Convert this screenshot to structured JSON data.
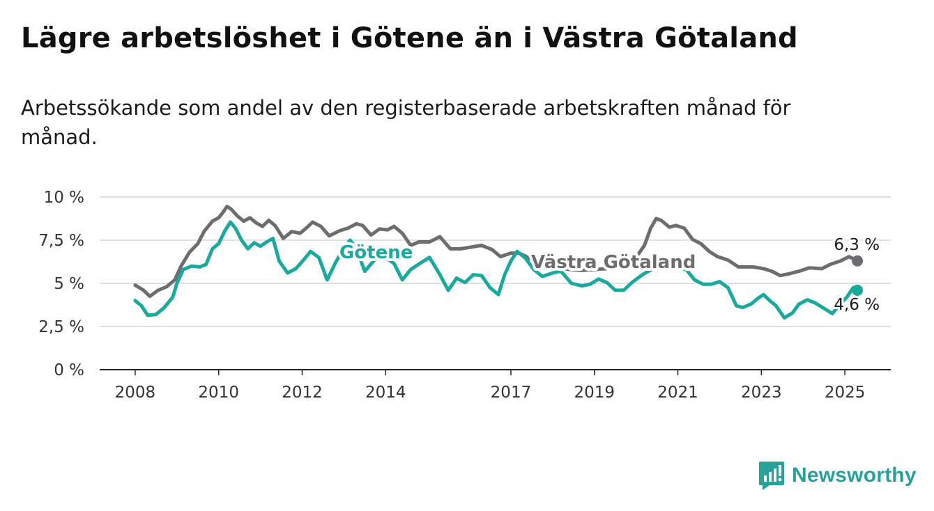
{
  "title": "Lägre arbetslöshet i Götene än i Västra Götaland",
  "subtitle": "Arbetssökande som andel av den registerbaserade arbetskraften månad för månad.",
  "brand": "Newsworthy",
  "chart_data": {
    "type": "line",
    "y_ticks": [
      0,
      2.5,
      5,
      7.5,
      10
    ],
    "y_tick_labels": [
      "0 %",
      "2,5 %",
      "5 %",
      "7,5 %",
      "10 %"
    ],
    "ylim": [
      0,
      10
    ],
    "x_ticks": [
      2008,
      2010,
      2012,
      2014,
      2017,
      2019,
      2021,
      2023,
      2025
    ],
    "x_tick_labels": [
      "2008",
      "2010",
      "2012",
      "2014",
      "2017",
      "2019",
      "2021",
      "2023",
      "2025"
    ],
    "xlim": [
      2007.15,
      2026.1
    ],
    "grid": true,
    "series": [
      {
        "name": "Västra Götaland",
        "color": "#6d6c71",
        "end_label": "6,3 %",
        "points": [
          [
            2008.0,
            4.9
          ],
          [
            2008.2,
            4.6
          ],
          [
            2008.35,
            4.25
          ],
          [
            2008.55,
            4.6
          ],
          [
            2008.75,
            4.8
          ],
          [
            2008.95,
            5.2
          ],
          [
            2009.1,
            6.0
          ],
          [
            2009.3,
            6.8
          ],
          [
            2009.5,
            7.3
          ],
          [
            2009.65,
            8.0
          ],
          [
            2009.85,
            8.6
          ],
          [
            2010.0,
            8.8
          ],
          [
            2010.1,
            9.1
          ],
          [
            2010.2,
            9.45
          ],
          [
            2010.3,
            9.3
          ],
          [
            2010.45,
            8.9
          ],
          [
            2010.6,
            8.6
          ],
          [
            2010.75,
            8.8
          ],
          [
            2010.9,
            8.5
          ],
          [
            2011.05,
            8.3
          ],
          [
            2011.2,
            8.65
          ],
          [
            2011.35,
            8.35
          ],
          [
            2011.55,
            7.6
          ],
          [
            2011.75,
            8.0
          ],
          [
            2011.95,
            7.9
          ],
          [
            2012.1,
            8.2
          ],
          [
            2012.25,
            8.55
          ],
          [
            2012.45,
            8.3
          ],
          [
            2012.65,
            7.75
          ],
          [
            2012.9,
            8.05
          ],
          [
            2013.1,
            8.2
          ],
          [
            2013.3,
            8.45
          ],
          [
            2013.45,
            8.35
          ],
          [
            2013.65,
            7.8
          ],
          [
            2013.85,
            8.15
          ],
          [
            2014.05,
            8.1
          ],
          [
            2014.2,
            8.3
          ],
          [
            2014.4,
            7.9
          ],
          [
            2014.6,
            7.2
          ],
          [
            2014.8,
            7.4
          ],
          [
            2015.05,
            7.4
          ],
          [
            2015.3,
            7.7
          ],
          [
            2015.55,
            7.0
          ],
          [
            2015.8,
            7.0
          ],
          [
            2016.05,
            7.1
          ],
          [
            2016.3,
            7.2
          ],
          [
            2016.55,
            6.95
          ],
          [
            2016.75,
            6.55
          ],
          [
            2017.0,
            6.75
          ],
          [
            2017.2,
            6.75
          ],
          [
            2017.45,
            6.45
          ],
          [
            2017.65,
            6.1
          ],
          [
            2018.2,
            5.85
          ],
          [
            2018.7,
            5.75
          ],
          [
            2019.3,
            5.85
          ],
          [
            2019.8,
            6.2
          ],
          [
            2020.0,
            6.5
          ],
          [
            2020.2,
            7.2
          ],
          [
            2020.35,
            8.2
          ],
          [
            2020.48,
            8.75
          ],
          [
            2020.6,
            8.65
          ],
          [
            2020.8,
            8.25
          ],
          [
            2020.95,
            8.35
          ],
          [
            2021.15,
            8.2
          ],
          [
            2021.35,
            7.55
          ],
          [
            2021.55,
            7.3
          ],
          [
            2021.75,
            6.85
          ],
          [
            2021.95,
            6.55
          ],
          [
            2022.2,
            6.35
          ],
          [
            2022.45,
            5.95
          ],
          [
            2022.8,
            5.95
          ],
          [
            2023.05,
            5.85
          ],
          [
            2023.25,
            5.7
          ],
          [
            2023.45,
            5.45
          ],
          [
            2023.65,
            5.55
          ],
          [
            2023.9,
            5.7
          ],
          [
            2024.15,
            5.9
          ],
          [
            2024.45,
            5.85
          ],
          [
            2024.65,
            6.1
          ],
          [
            2024.9,
            6.3
          ],
          [
            2025.1,
            6.55
          ],
          [
            2025.3,
            6.3
          ]
        ]
      },
      {
        "name": "Götene",
        "color": "#1aa99c",
        "end_label": "4,6 %",
        "points": [
          [
            2008.0,
            4.0
          ],
          [
            2008.15,
            3.7
          ],
          [
            2008.3,
            3.15
          ],
          [
            2008.5,
            3.2
          ],
          [
            2008.7,
            3.6
          ],
          [
            2008.9,
            4.2
          ],
          [
            2009.0,
            5.0
          ],
          [
            2009.15,
            5.8
          ],
          [
            2009.35,
            6.0
          ],
          [
            2009.55,
            5.95
          ],
          [
            2009.7,
            6.1
          ],
          [
            2009.85,
            7.0
          ],
          [
            2010.0,
            7.3
          ],
          [
            2010.15,
            8.05
          ],
          [
            2010.28,
            8.55
          ],
          [
            2010.4,
            8.2
          ],
          [
            2010.55,
            7.5
          ],
          [
            2010.7,
            7.0
          ],
          [
            2010.85,
            7.35
          ],
          [
            2011.0,
            7.15
          ],
          [
            2011.15,
            7.4
          ],
          [
            2011.3,
            7.6
          ],
          [
            2011.45,
            6.3
          ],
          [
            2011.65,
            5.6
          ],
          [
            2011.85,
            5.85
          ],
          [
            2012.05,
            6.4
          ],
          [
            2012.2,
            6.85
          ],
          [
            2012.4,
            6.5
          ],
          [
            2012.6,
            5.2
          ],
          [
            2012.8,
            6.2
          ],
          [
            2013.0,
            7.05
          ],
          [
            2013.15,
            7.5
          ],
          [
            2013.3,
            7.0
          ],
          [
            2013.5,
            5.7
          ],
          [
            2013.75,
            6.4
          ],
          [
            2014.0,
            6.5
          ],
          [
            2014.2,
            6.15
          ],
          [
            2014.4,
            5.2
          ],
          [
            2014.6,
            5.8
          ],
          [
            2014.85,
            6.2
          ],
          [
            2015.05,
            6.5
          ],
          [
            2015.3,
            5.5
          ],
          [
            2015.5,
            4.6
          ],
          [
            2015.7,
            5.3
          ],
          [
            2015.9,
            5.05
          ],
          [
            2016.1,
            5.5
          ],
          [
            2016.3,
            5.45
          ],
          [
            2016.5,
            4.75
          ],
          [
            2016.7,
            4.35
          ],
          [
            2016.85,
            5.5
          ],
          [
            2017.0,
            6.3
          ],
          [
            2017.15,
            6.85
          ],
          [
            2017.35,
            6.45
          ],
          [
            2017.55,
            5.8
          ],
          [
            2017.75,
            5.4
          ],
          [
            2018.0,
            5.6
          ],
          [
            2018.2,
            5.7
          ],
          [
            2018.45,
            5.0
          ],
          [
            2018.7,
            4.85
          ],
          [
            2018.9,
            4.95
          ],
          [
            2019.1,
            5.25
          ],
          [
            2019.3,
            5.05
          ],
          [
            2019.5,
            4.6
          ],
          [
            2019.7,
            4.6
          ],
          [
            2019.9,
            5.05
          ],
          [
            2020.15,
            5.5
          ],
          [
            2020.4,
            5.85
          ],
          [
            2020.6,
            6.0
          ],
          [
            2020.9,
            5.95
          ],
          [
            2021.2,
            5.8
          ],
          [
            2021.4,
            5.2
          ],
          [
            2021.6,
            4.95
          ],
          [
            2021.8,
            4.95
          ],
          [
            2022.0,
            5.1
          ],
          [
            2022.2,
            4.75
          ],
          [
            2022.4,
            3.7
          ],
          [
            2022.55,
            3.6
          ],
          [
            2022.75,
            3.8
          ],
          [
            2022.9,
            4.1
          ],
          [
            2023.05,
            4.35
          ],
          [
            2023.2,
            4.0
          ],
          [
            2023.35,
            3.7
          ],
          [
            2023.55,
            3.0
          ],
          [
            2023.75,
            3.3
          ],
          [
            2023.9,
            3.8
          ],
          [
            2024.1,
            4.05
          ],
          [
            2024.3,
            3.85
          ],
          [
            2024.5,
            3.55
          ],
          [
            2024.7,
            3.25
          ],
          [
            2024.9,
            3.85
          ],
          [
            2025.05,
            4.2
          ],
          [
            2025.2,
            4.75
          ],
          [
            2025.3,
            4.6
          ]
        ]
      }
    ]
  }
}
